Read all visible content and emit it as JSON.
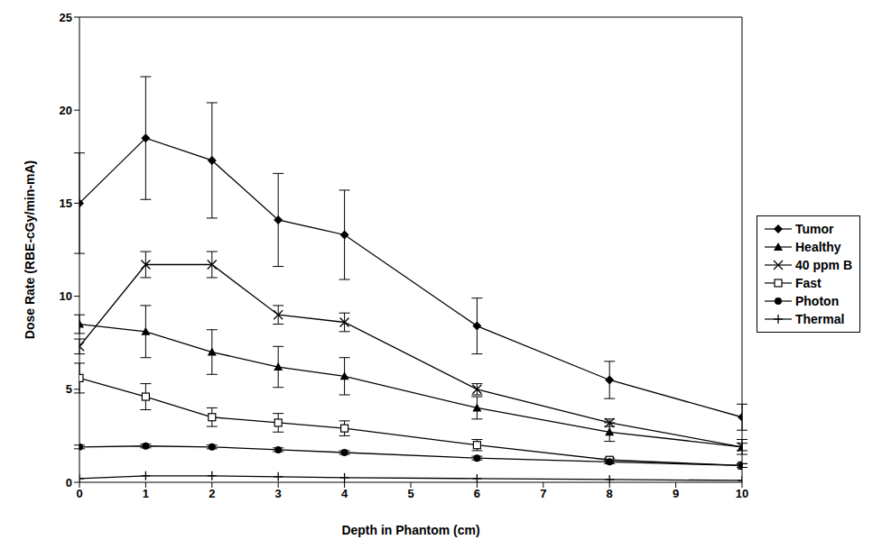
{
  "chart_data": {
    "type": "line",
    "x_label": "Depth in Phantom (cm)",
    "y_label": "Dose Rate (RBE-cGy/min-mA)",
    "x": [
      0,
      1,
      2,
      3,
      4,
      6,
      8,
      10
    ],
    "xlim": [
      0,
      10
    ],
    "xticks": [
      0,
      1,
      2,
      3,
      4,
      5,
      6,
      7,
      8,
      9,
      10
    ],
    "ylim": [
      0,
      25
    ],
    "yticks": [
      0,
      5,
      10,
      15,
      20,
      25
    ],
    "grid": false,
    "legend": "right",
    "series": [
      {
        "name": "Tumor",
        "color": "#000000",
        "marker": "diamond",
        "values": [
          15.0,
          18.5,
          17.3,
          14.1,
          13.3,
          8.4,
          5.5,
          3.5
        ],
        "errors": [
          2.7,
          3.3,
          3.1,
          2.5,
          2.4,
          1.5,
          1.0,
          0.7
        ]
      },
      {
        "name": "Healthy",
        "color": "#000000",
        "marker": "triangle",
        "values": [
          8.5,
          8.1,
          7.0,
          6.2,
          5.7,
          4.0,
          2.7,
          1.9
        ],
        "errors": [
          0.5,
          1.4,
          1.2,
          1.1,
          1.0,
          0.6,
          0.5,
          0.4
        ]
      },
      {
        "name": "40 ppm B",
        "color": "#000000",
        "marker": "x",
        "values": [
          7.3,
          11.7,
          11.7,
          9.0,
          8.6,
          5.0,
          3.2,
          1.9
        ],
        "errors": [
          0.4,
          0.7,
          0.7,
          0.5,
          0.5,
          0.3,
          0.2,
          0.2
        ]
      },
      {
        "name": "Fast",
        "color": "#000000",
        "marker": "square-open",
        "values": [
          5.6,
          4.6,
          3.5,
          3.2,
          2.9,
          2.0,
          1.2,
          0.9
        ],
        "errors": [
          0.8,
          0.7,
          0.5,
          0.5,
          0.4,
          0.3,
          0.1,
          0.1
        ]
      },
      {
        "name": "Photon",
        "color": "#000000",
        "marker": "circle",
        "values": [
          1.9,
          1.95,
          1.9,
          1.75,
          1.6,
          1.3,
          1.1,
          0.9
        ],
        "errors": [
          0.1,
          0.1,
          0.1,
          0.1,
          0.1,
          0.1,
          0.1,
          0.1
        ]
      },
      {
        "name": "Thermal",
        "color": "#000000",
        "marker": "plus",
        "values": [
          0.2,
          0.35,
          0.35,
          0.3,
          0.25,
          0.2,
          0.15,
          0.1
        ]
      }
    ]
  }
}
